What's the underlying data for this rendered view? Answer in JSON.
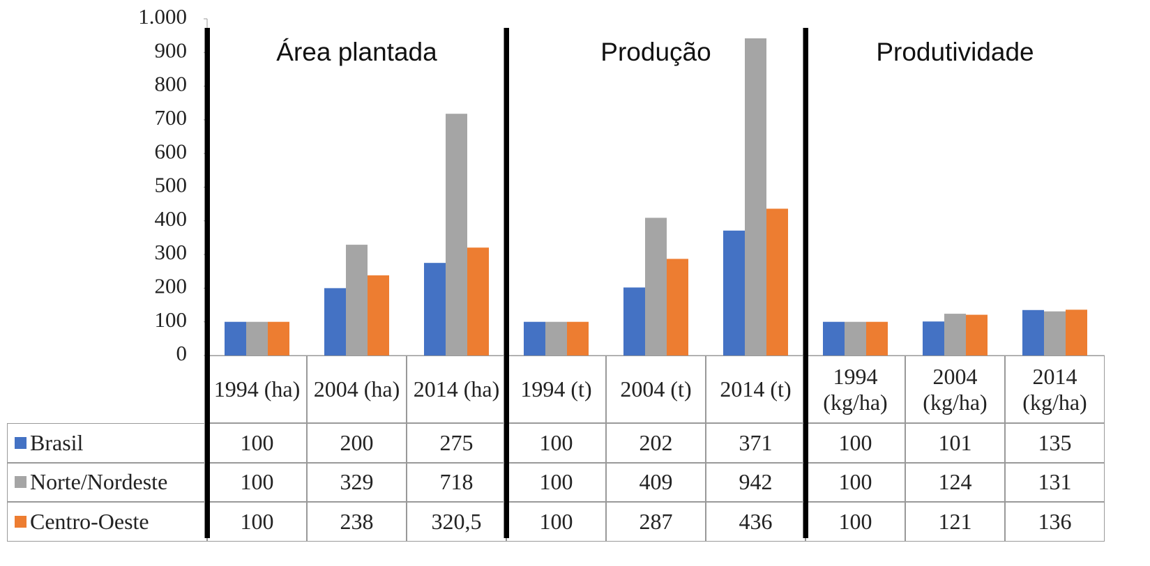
{
  "chart_data": {
    "type": "bar",
    "groups": [
      "Área plantada",
      "Produção",
      "Produtividade"
    ],
    "categories": [
      "1994 (ha)",
      "2004 (ha)",
      "2014 (ha)",
      "1994 (t)",
      "2004 (t)",
      "2014 (t)",
      "1994 (kg/ha)",
      "2004 (kg/ha)",
      "2014 (kg/ha)"
    ],
    "series": [
      {
        "name": "Brasil",
        "color": "#4472c4",
        "values": [
          100,
          200,
          275,
          100,
          202,
          371,
          100,
          101,
          135
        ]
      },
      {
        "name": "Norte/Nordeste",
        "color": "#a5a5a5",
        "values": [
          100,
          329,
          718,
          100,
          409,
          942,
          100,
          124,
          131
        ]
      },
      {
        "name": "Centro-Oeste",
        "color": "#ed7d31",
        "values": [
          100,
          238,
          320.5,
          100,
          287,
          436,
          100,
          121,
          136
        ],
        "value_labels": [
          "100",
          "238",
          "320,5",
          "100",
          "287",
          "436",
          "100",
          "121",
          "136"
        ]
      }
    ],
    "ylim": [
      0,
      1000
    ],
    "yticks": [
      0,
      100,
      200,
      300,
      400,
      500,
      600,
      700,
      800,
      900,
      {
        "value": 1000,
        "label": "1.000"
      }
    ],
    "data_table": true
  }
}
